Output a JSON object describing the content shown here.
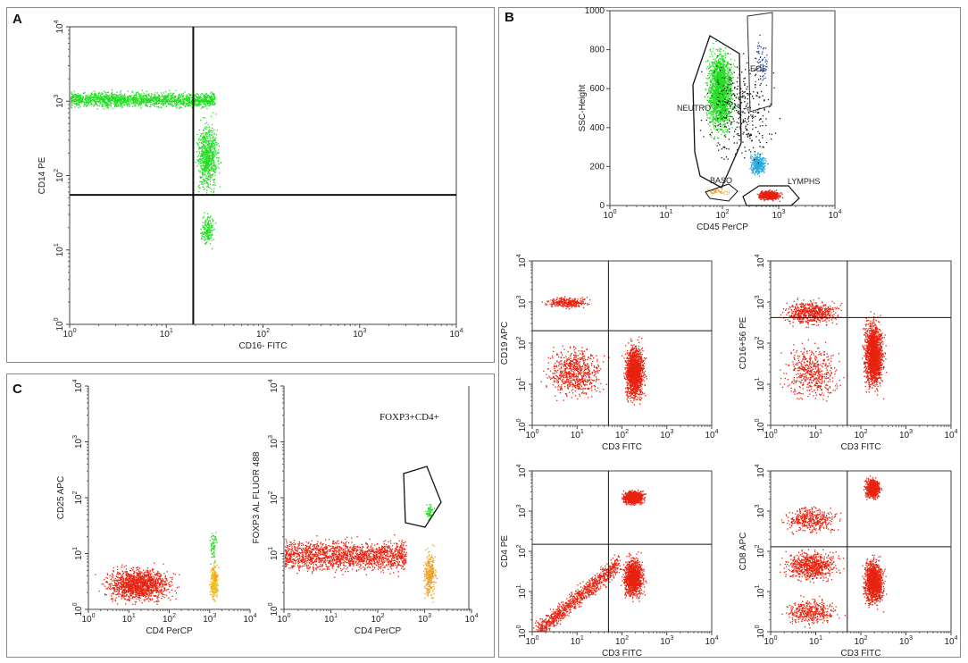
{
  "panels": {
    "A": {
      "label": "A"
    },
    "B": {
      "label": "B"
    },
    "C": {
      "label": "C"
    }
  },
  "colors": {
    "green": "#22dd22",
    "red": "#e8220f",
    "cyan": "#29a8e0",
    "orange": "#f0a020",
    "yellow": "#e8d020",
    "blue": "#1a3aa0",
    "black": "#111111"
  },
  "chart_data": [
    {
      "id": "A",
      "type": "scatter",
      "xlabel": "CD16- FITC",
      "ylabel": "CD14 PE",
      "xscale": "log",
      "yscale": "log",
      "xlim": [
        1,
        10000
      ],
      "ylim": [
        1,
        10000
      ],
      "xticks": [
        {
          "base": "10",
          "exp": "0"
        },
        {
          "base": "10",
          "exp": "1"
        },
        {
          "base": "10",
          "exp": "2"
        },
        {
          "base": "10",
          "exp": "3"
        },
        {
          "base": "10",
          "exp": "4"
        }
      ],
      "yticks": [
        {
          "base": "10",
          "exp": "0"
        },
        {
          "base": "10",
          "exp": "1"
        },
        {
          "base": "10",
          "exp": "2"
        },
        {
          "base": "10",
          "exp": "3"
        },
        {
          "base": "10",
          "exp": "4"
        }
      ],
      "quadrant": {
        "x": 19,
        "y": 55
      },
      "populations": [
        {
          "color": "green",
          "count": 1700,
          "x_log": [
            0,
            1.5
          ],
          "y_log": [
            2.85,
            3.2
          ],
          "shape": "band"
        },
        {
          "color": "green",
          "count": 700,
          "x_log": [
            1.25,
            1.6
          ],
          "y_log": [
            1.55,
            2.95
          ]
        },
        {
          "color": "green",
          "count": 180,
          "x_log": [
            1.3,
            1.55
          ],
          "y_log": [
            0.95,
            1.6
          ]
        }
      ]
    },
    {
      "id": "B-overview",
      "type": "scatter",
      "xlabel": "CD45 PerCP",
      "ylabel": "SSC-Height",
      "xscale": "log",
      "yscale": "linear",
      "xlim": [
        1,
        10000
      ],
      "ylim": [
        0,
        1000
      ],
      "xticks": [
        {
          "base": "10",
          "exp": "0"
        },
        {
          "base": "10",
          "exp": "1"
        },
        {
          "base": "10",
          "exp": "2"
        },
        {
          "base": "10",
          "exp": "3"
        },
        {
          "base": "10",
          "exp": "4"
        }
      ],
      "yticks": [
        "0",
        "200",
        "400",
        "600",
        "800",
        "1000"
      ],
      "gates": [
        {
          "name": "NEUTRO",
          "color": "green"
        },
        {
          "name": "EOS",
          "color": "blue"
        },
        {
          "name": "BASO",
          "color": "orange"
        },
        {
          "name": "LYMPHS",
          "color": "red"
        }
      ],
      "populations": [
        {
          "color": "green",
          "count": 1800,
          "x_log": [
            1.6,
            2.3
          ],
          "y": [
            280,
            900
          ]
        },
        {
          "color": "cyan",
          "count": 350,
          "x_log": [
            2.4,
            2.85
          ],
          "y": [
            130,
            300
          ]
        },
        {
          "color": "red",
          "count": 700,
          "x_log": [
            2.55,
            3.1
          ],
          "y": [
            20,
            90
          ]
        },
        {
          "color": "orange",
          "count": 40,
          "x_log": [
            1.6,
            2.2
          ],
          "y": [
            40,
            110
          ]
        },
        {
          "color": "blue",
          "count": 60,
          "x_log": [
            2.45,
            2.9
          ],
          "y": [
            520,
            920
          ]
        },
        {
          "color": "black",
          "count": 350,
          "x_log": [
            1.4,
            3.2
          ],
          "y": [
            100,
            900
          ]
        }
      ]
    },
    {
      "id": "B-cd19",
      "type": "scatter",
      "xlabel": "CD3 FITC",
      "ylabel": "CD19 APC",
      "xscale": "log",
      "yscale": "log",
      "xlim": [
        1,
        10000
      ],
      "ylim": [
        1,
        10000
      ],
      "xticks": [
        {
          "base": "10",
          "exp": "0"
        },
        {
          "base": "10",
          "exp": "1"
        },
        {
          "base": "10",
          "exp": "2"
        },
        {
          "base": "10",
          "exp": "3"
        },
        {
          "base": "10",
          "exp": "4"
        }
      ],
      "yticks": [
        {
          "base": "10",
          "exp": "0"
        },
        {
          "base": "10",
          "exp": "1"
        },
        {
          "base": "10",
          "exp": "2"
        },
        {
          "base": "10",
          "exp": "3"
        },
        {
          "base": "10",
          "exp": "4"
        }
      ],
      "quadrant": {
        "x": 50,
        "y": 200
      },
      "populations": [
        {
          "color": "red",
          "count": 300,
          "x_log": [
            0.05,
            1.5
          ],
          "y_log": [
            2.8,
            3.2
          ]
        },
        {
          "color": "red",
          "count": 1500,
          "x_log": [
            1.95,
            2.6
          ],
          "y_log": [
            0.3,
            2.3
          ]
        },
        {
          "color": "red",
          "count": 700,
          "x_log": [
            0,
            1.9
          ],
          "y_log": [
            0.4,
            2.2
          ]
        }
      ]
    },
    {
      "id": "B-cd16",
      "type": "scatter",
      "xlabel": "CD3 FITC",
      "ylabel": "CD16+56 PE",
      "xscale": "log",
      "yscale": "log",
      "xlim": [
        1,
        10000
      ],
      "ylim": [
        1,
        10000
      ],
      "xticks": [
        {
          "base": "10",
          "exp": "0"
        },
        {
          "base": "10",
          "exp": "1"
        },
        {
          "base": "10",
          "exp": "2"
        },
        {
          "base": "10",
          "exp": "3"
        },
        {
          "base": "10",
          "exp": "4"
        }
      ],
      "yticks": [
        {
          "base": "10",
          "exp": "0"
        },
        {
          "base": "10",
          "exp": "1"
        },
        {
          "base": "10",
          "exp": "2"
        },
        {
          "base": "10",
          "exp": "3"
        },
        {
          "base": "10",
          "exp": "4"
        }
      ],
      "quadrant": {
        "x": 50,
        "y": 420
      },
      "populations": [
        {
          "color": "red",
          "count": 600,
          "x_log": [
            0,
            1.8
          ],
          "y_log": [
            2.3,
            3.2
          ]
        },
        {
          "color": "red",
          "count": 1700,
          "x_log": [
            1.95,
            2.6
          ],
          "y_log": [
            0.5,
            3.0
          ]
        },
        {
          "color": "red",
          "count": 500,
          "x_log": [
            0,
            1.8
          ],
          "y_log": [
            0.3,
            2.3
          ]
        }
      ]
    },
    {
      "id": "B-cd4",
      "type": "scatter",
      "xlabel": "CD3 FITC",
      "ylabel": "CD4 PE",
      "xscale": "log",
      "yscale": "log",
      "xlim": [
        1,
        10000
      ],
      "ylim": [
        1,
        10000
      ],
      "xticks": [
        {
          "base": "10",
          "exp": "0"
        },
        {
          "base": "10",
          "exp": "1"
        },
        {
          "base": "10",
          "exp": "2"
        },
        {
          "base": "10",
          "exp": "3"
        },
        {
          "base": "10",
          "exp": "4"
        }
      ],
      "yticks": [
        {
          "base": "10",
          "exp": "0"
        },
        {
          "base": "10",
          "exp": "1"
        },
        {
          "base": "10",
          "exp": "2"
        },
        {
          "base": "10",
          "exp": "3"
        },
        {
          "base": "10",
          "exp": "4"
        }
      ],
      "quadrant": {
        "x": 50,
        "y": 150
      },
      "populations": [
        {
          "color": "red",
          "count": 900,
          "x_log": [
            1.9,
            2.6
          ],
          "y_log": [
            3.1,
            3.6
          ]
        },
        {
          "color": "red",
          "count": 1100,
          "x_log": [
            1.9,
            2.6
          ],
          "y_log": [
            0.6,
            2.1
          ]
        },
        {
          "color": "red",
          "count": 1000,
          "x_log": [
            0.1,
            1.9
          ],
          "y_log": [
            0,
            1.7
          ],
          "shape": "diag"
        }
      ]
    },
    {
      "id": "B-cd8",
      "type": "scatter",
      "xlabel": "CD3 FITC",
      "ylabel": "CD8 APC",
      "xscale": "log",
      "yscale": "log",
      "xlim": [
        1,
        10000
      ],
      "ylim": [
        1,
        10000
      ],
      "xticks": [
        {
          "base": "10",
          "exp": "0"
        },
        {
          "base": "10",
          "exp": "1"
        },
        {
          "base": "10",
          "exp": "2"
        },
        {
          "base": "10",
          "exp": "3"
        },
        {
          "base": "10",
          "exp": "4"
        }
      ],
      "yticks": [
        {
          "base": "10",
          "exp": "0"
        },
        {
          "base": "10",
          "exp": "1"
        },
        {
          "base": "10",
          "exp": "2"
        },
        {
          "base": "10",
          "exp": "3"
        },
        {
          "base": "10",
          "exp": "4"
        }
      ],
      "quadrant": {
        "x": 50,
        "y": 130
      },
      "populations": [
        {
          "color": "red",
          "count": 700,
          "x_log": [
            2.0,
            2.5
          ],
          "y_log": [
            3.2,
            3.95
          ]
        },
        {
          "color": "red",
          "count": 1200,
          "x_log": [
            1.95,
            2.6
          ],
          "y_log": [
            0.4,
            2.1
          ]
        },
        {
          "color": "red",
          "count": 700,
          "x_log": [
            0,
            1.8
          ],
          "y_log": [
            1.1,
            2.2
          ]
        },
        {
          "color": "red",
          "count": 400,
          "x_log": [
            0,
            1.8
          ],
          "y_log": [
            2.3,
            3.3
          ]
        },
        {
          "color": "red",
          "count": 400,
          "x_log": [
            0,
            1.8
          ],
          "y_log": [
            0,
            1.0
          ]
        }
      ]
    },
    {
      "id": "C-cd25",
      "type": "scatter",
      "xlabel": "CD4 PerCP",
      "ylabel": "CD25 APC",
      "xscale": "log",
      "yscale": "log",
      "xlim": [
        1,
        10000
      ],
      "ylim": [
        1,
        10000
      ],
      "xticks": [
        {
          "base": "10",
          "exp": "0"
        },
        {
          "base": "10",
          "exp": "1"
        },
        {
          "base": "10",
          "exp": "2"
        },
        {
          "base": "10",
          "exp": "3"
        },
        {
          "base": "10",
          "exp": "4"
        }
      ],
      "yticks": [
        {
          "base": "10",
          "exp": "0"
        },
        {
          "base": "10",
          "exp": "1"
        },
        {
          "base": "10",
          "exp": "2"
        },
        {
          "base": "10",
          "exp": "3"
        },
        {
          "base": "10",
          "exp": "4"
        }
      ],
      "populations": [
        {
          "color": "red",
          "count": 1400,
          "x_log": [
            0,
            2.5
          ],
          "y_log": [
            0,
            0.9
          ]
        },
        {
          "color": "orange",
          "count": 200,
          "x_log": [
            2.95,
            3.25
          ],
          "y_log": [
            0,
            1.0
          ]
        },
        {
          "color": "yellow",
          "count": 80,
          "x_log": [
            2.95,
            3.25
          ],
          "y_log": [
            0,
            0.9
          ]
        },
        {
          "color": "green",
          "count": 60,
          "x_log": [
            2.95,
            3.2
          ],
          "y_log": [
            0.7,
            1.6
          ]
        }
      ]
    },
    {
      "id": "C-foxp3",
      "type": "scatter",
      "xlabel": "CD4 PerCP",
      "ylabel": "FOXP3 AL FLUOR 488",
      "xscale": "log",
      "yscale": "log",
      "xlim": [
        1,
        10000
      ],
      "ylim": [
        1,
        10000
      ],
      "xticks": [
        {
          "base": "10",
          "exp": "0"
        },
        {
          "base": "10",
          "exp": "1"
        },
        {
          "base": "10",
          "exp": "2"
        },
        {
          "base": "10",
          "exp": "3"
        },
        {
          "base": "10",
          "exp": "4"
        }
      ],
      "yticks": [
        {
          "base": "10",
          "exp": "0"
        },
        {
          "base": "10",
          "exp": "1"
        },
        {
          "base": "10",
          "exp": "2"
        },
        {
          "base": "10",
          "exp": "3"
        },
        {
          "base": "10",
          "exp": "4"
        }
      ],
      "gate_label": "FOXP3+CD4+",
      "populations": [
        {
          "color": "red",
          "count": 1700,
          "x_log": [
            0,
            2.6
          ],
          "y_log": [
            0.5,
            1.45
          ],
          "shape": "band"
        },
        {
          "color": "orange",
          "count": 300,
          "x_log": [
            2.9,
            3.3
          ],
          "y_log": [
            0,
            1.25
          ]
        },
        {
          "color": "green",
          "count": 60,
          "x_log": [
            2.95,
            3.25
          ],
          "y_log": [
            1.5,
            2.0
          ]
        }
      ]
    }
  ]
}
